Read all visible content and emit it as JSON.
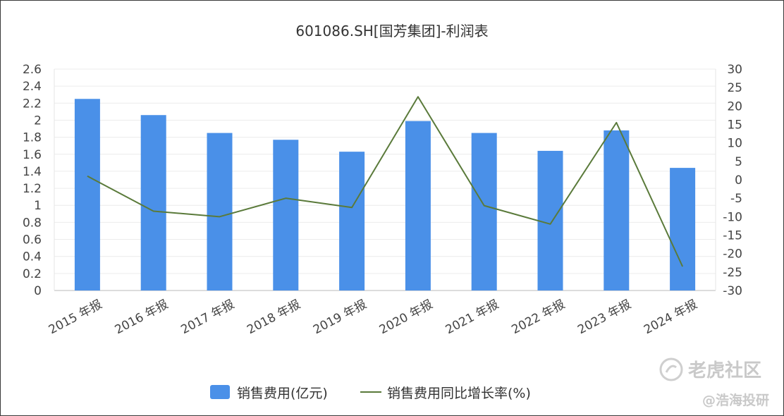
{
  "chart_data": {
    "type": "bar+line",
    "title": "601086.SH[国芳集团]-利润表",
    "categories": [
      "2015 年报",
      "2016 年报",
      "2017 年报",
      "2018 年报",
      "2019 年报",
      "2020 年报",
      "2021 年报",
      "2022 年报",
      "2023 年报",
      "2024 年报"
    ],
    "series": [
      {
        "name": "销售费用(亿元)",
        "type": "bar",
        "axis": "left",
        "color": "#4a90e8",
        "values": [
          2.25,
          2.06,
          1.85,
          1.77,
          1.63,
          1.99,
          1.85,
          1.64,
          1.88,
          1.44
        ]
      },
      {
        "name": "销售费用同比增长率(%)",
        "type": "line",
        "axis": "right",
        "color": "#5a7a3a",
        "values": [
          1,
          -8.5,
          -10,
          -5,
          -7.5,
          22.5,
          -7,
          -12,
          15.5,
          -23.5
        ]
      }
    ],
    "y_left": {
      "min": 0,
      "max": 2.6,
      "ticks": [
        "0",
        "0.2",
        "0.4",
        "0.6",
        "0.8",
        "1",
        "1.2",
        "1.4",
        "1.6",
        "1.8",
        "2",
        "2.2",
        "2.4",
        "2.6"
      ]
    },
    "y_right": {
      "min": -30,
      "max": 30,
      "ticks": [
        "-30",
        "-25",
        "-20",
        "-15",
        "-10",
        "-5",
        "0",
        "5",
        "10",
        "15",
        "20",
        "25",
        "30"
      ]
    },
    "grid": true,
    "legend": "bottom-center"
  },
  "watermark": {
    "brand": "老虎社区",
    "account": "@浩海投研"
  }
}
